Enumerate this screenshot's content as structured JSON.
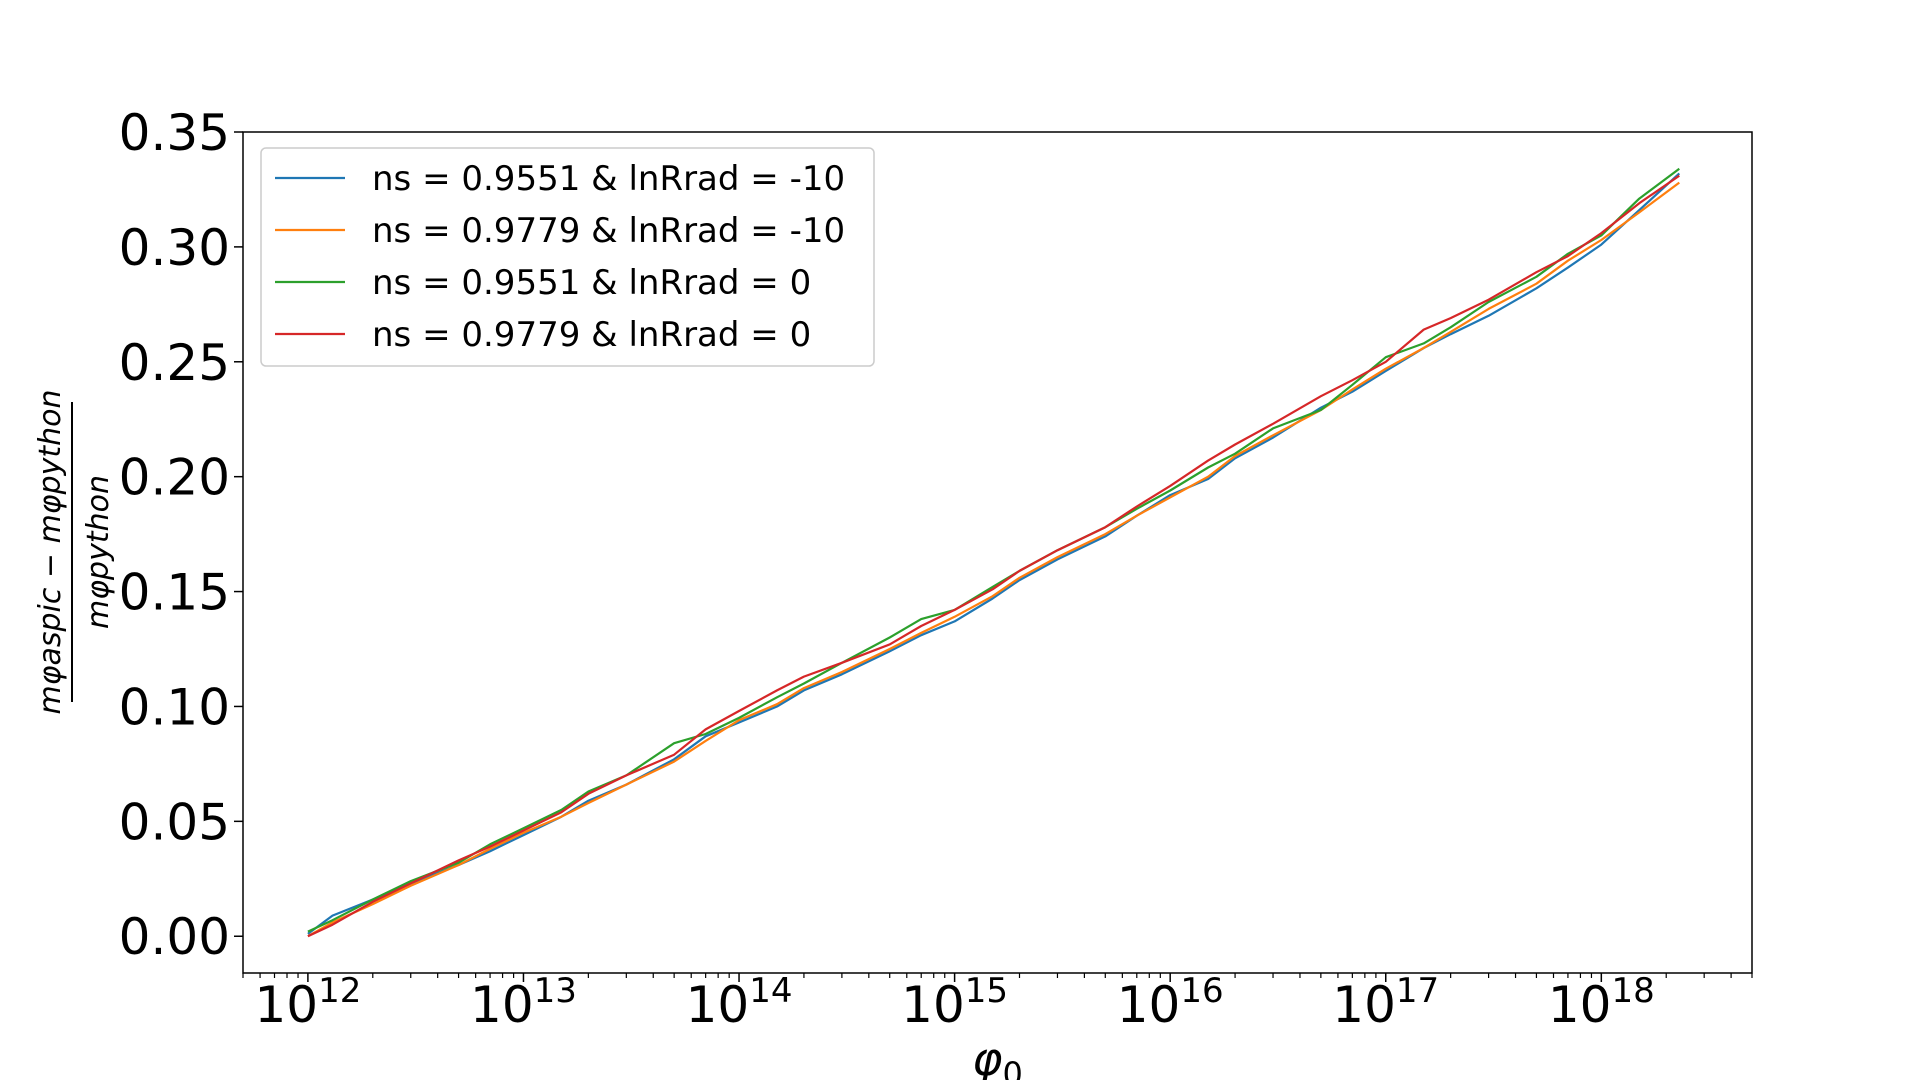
{
  "chart_data": {
    "type": "line",
    "xscale": "log",
    "xlim": [
      500000000000.0,
      5e+18
    ],
    "ylim": [
      -0.016,
      0.35
    ],
    "xlabel": "φ0",
    "ylabel": {
      "numerator": "mφaspic − mφpython",
      "denominator": "mφpython"
    },
    "grid": false,
    "legend_position": "top-left",
    "x_ticks": [
      {
        "value": 1000000000000.0,
        "base": "10",
        "exp": "12"
      },
      {
        "value": 10000000000000.0,
        "base": "10",
        "exp": "13"
      },
      {
        "value": 100000000000000.0,
        "base": "10",
        "exp": "14"
      },
      {
        "value": 1000000000000000.0,
        "base": "10",
        "exp": "15"
      },
      {
        "value": 1e+16,
        "base": "10",
        "exp": "16"
      },
      {
        "value": 1e+17,
        "base": "10",
        "exp": "17"
      },
      {
        "value": 1e+18,
        "base": "10",
        "exp": "18"
      }
    ],
    "y_ticks": [
      {
        "value": 0.0,
        "label": "0.00"
      },
      {
        "value": 0.05,
        "label": "0.05"
      },
      {
        "value": 0.1,
        "label": "0.10"
      },
      {
        "value": 0.15,
        "label": "0.15"
      },
      {
        "value": 0.2,
        "label": "0.20"
      },
      {
        "value": 0.25,
        "label": "0.25"
      },
      {
        "value": 0.3,
        "label": "0.30"
      },
      {
        "value": 0.35,
        "label": "0.35"
      }
    ],
    "series": [
      {
        "name": "ns = 0.9551 & lnRrad = -10",
        "color": "#1f77b4",
        "x": [
          1000000000000.0,
          1300000000000.0,
          2000000000000.0,
          3000000000000.0,
          5000000000000.0,
          7000000000000.0,
          10000000000000.0,
          15000000000000.0,
          20000000000000.0,
          30000000000000.0,
          50000000000000.0,
          70000000000000.0,
          100000000000000.0,
          150000000000000.0,
          200000000000000.0,
          300000000000000.0,
          500000000000000.0,
          700000000000000.0,
          1000000000000000.0,
          1500000000000000.0,
          2000000000000000.0,
          3000000000000000.0,
          5000000000000000.0,
          7000000000000000.0,
          1e+16,
          1.5e+16,
          2e+16,
          3e+16,
          5e+16,
          7e+16,
          1e+17,
          1.5e+17,
          2e+17,
          3e+17,
          5e+17,
          7e+17,
          1e+18,
          1.5e+18,
          2.3e+18
        ],
        "y": [
          0.001,
          0.009,
          0.016,
          0.023,
          0.031,
          0.037,
          0.044,
          0.052,
          0.059,
          0.066,
          0.077,
          0.087,
          0.093,
          0.1,
          0.107,
          0.114,
          0.124,
          0.131,
          0.137,
          0.147,
          0.155,
          0.164,
          0.174,
          0.183,
          0.192,
          0.199,
          0.208,
          0.217,
          0.23,
          0.237,
          0.246,
          0.256,
          0.262,
          0.27,
          0.282,
          0.291,
          0.301,
          0.316,
          0.332
        ]
      },
      {
        "name": "ns = 0.9779 & lnRrad = -10",
        "color": "#ff7f0e",
        "x": [
          1000000000000.0,
          1300000000000.0,
          2000000000000.0,
          3000000000000.0,
          5000000000000.0,
          7000000000000.0,
          10000000000000.0,
          15000000000000.0,
          20000000000000.0,
          30000000000000.0,
          50000000000000.0,
          70000000000000.0,
          100000000000000.0,
          150000000000000.0,
          200000000000000.0,
          300000000000000.0,
          500000000000000.0,
          700000000000000.0,
          1000000000000000.0,
          1500000000000000.0,
          2000000000000000.0,
          3000000000000000.0,
          5000000000000000.0,
          7000000000000000.0,
          1e+16,
          1.5e+16,
          2e+16,
          3e+16,
          5e+16,
          7e+16,
          1e+17,
          1.5e+17,
          2e+17,
          3e+17,
          5e+17,
          7e+17,
          1e+18,
          1.5e+18,
          2.3e+18
        ],
        "y": [
          0.0,
          0.006,
          0.014,
          0.022,
          0.031,
          0.038,
          0.045,
          0.052,
          0.058,
          0.066,
          0.076,
          0.085,
          0.094,
          0.101,
          0.108,
          0.115,
          0.125,
          0.132,
          0.139,
          0.148,
          0.156,
          0.165,
          0.175,
          0.183,
          0.191,
          0.2,
          0.209,
          0.218,
          0.229,
          0.238,
          0.247,
          0.256,
          0.263,
          0.273,
          0.284,
          0.294,
          0.303,
          0.315,
          0.328
        ]
      },
      {
        "name": "ns = 0.9551 & lnRrad = 0",
        "color": "#2ca02c",
        "x": [
          1000000000000.0,
          1300000000000.0,
          2000000000000.0,
          3000000000000.0,
          5000000000000.0,
          7000000000000.0,
          10000000000000.0,
          15000000000000.0,
          20000000000000.0,
          30000000000000.0,
          50000000000000.0,
          70000000000000.0,
          100000000000000.0,
          150000000000000.0,
          200000000000000.0,
          300000000000000.0,
          500000000000000.0,
          700000000000000.0,
          1000000000000000.0,
          1500000000000000.0,
          2000000000000000.0,
          3000000000000000.0,
          5000000000000000.0,
          7000000000000000.0,
          1e+16,
          1.5e+16,
          2e+16,
          3e+16,
          5e+16,
          7e+16,
          1e+17,
          1.5e+17,
          2e+17,
          3e+17,
          5e+17,
          7e+17,
          1e+18,
          1.5e+18,
          2.3e+18
        ],
        "y": [
          0.002,
          0.007,
          0.016,
          0.024,
          0.032,
          0.04,
          0.047,
          0.055,
          0.063,
          0.07,
          0.084,
          0.088,
          0.095,
          0.104,
          0.11,
          0.119,
          0.13,
          0.138,
          0.142,
          0.152,
          0.159,
          0.168,
          0.178,
          0.186,
          0.194,
          0.204,
          0.21,
          0.221,
          0.229,
          0.24,
          0.252,
          0.258,
          0.265,
          0.276,
          0.287,
          0.297,
          0.305,
          0.321,
          0.334
        ]
      },
      {
        "name": "ns = 0.9779 & lnRrad = 0",
        "color": "#d62728",
        "x": [
          1000000000000.0,
          1300000000000.0,
          2000000000000.0,
          3000000000000.0,
          5000000000000.0,
          7000000000000.0,
          10000000000000.0,
          15000000000000.0,
          20000000000000.0,
          30000000000000.0,
          50000000000000.0,
          70000000000000.0,
          100000000000000.0,
          150000000000000.0,
          200000000000000.0,
          300000000000000.0,
          500000000000000.0,
          700000000000000.0,
          1000000000000000.0,
          1500000000000000.0,
          2000000000000000.0,
          3000000000000000.0,
          5000000000000000.0,
          7000000000000000.0,
          1e+16,
          1.5e+16,
          2e+16,
          3e+16,
          5e+16,
          7e+16,
          1e+17,
          1.5e+17,
          2e+17,
          3e+17,
          5e+17,
          7e+17,
          1e+18,
          1.5e+18,
          2.3e+18
        ],
        "y": [
          0.0,
          0.005,
          0.015,
          0.023,
          0.033,
          0.039,
          0.046,
          0.054,
          0.062,
          0.07,
          0.079,
          0.09,
          0.098,
          0.107,
          0.113,
          0.119,
          0.127,
          0.135,
          0.142,
          0.151,
          0.159,
          0.168,
          0.178,
          0.187,
          0.196,
          0.207,
          0.214,
          0.223,
          0.235,
          0.242,
          0.25,
          0.264,
          0.269,
          0.277,
          0.289,
          0.296,
          0.306,
          0.319,
          0.331
        ]
      }
    ]
  }
}
